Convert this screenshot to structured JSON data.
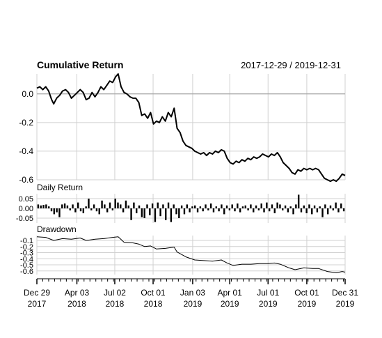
{
  "chart_data": {
    "type": "line",
    "title": "Cumulative Return",
    "date_range": "2017-12-29 / 2019-12-31",
    "x_ticks": [
      {
        "date": "2017-12-29",
        "line1": "Dec 29",
        "line2": "2017"
      },
      {
        "date": "2018-04-03",
        "line1": "Apr 03",
        "line2": "2018"
      },
      {
        "date": "2018-07-02",
        "line1": "Jul 02",
        "line2": "2018"
      },
      {
        "date": "2018-10-01",
        "line1": "Oct 01",
        "line2": "2018"
      },
      {
        "date": "2019-01-03",
        "line1": "Jan 03",
        "line2": "2019"
      },
      {
        "date": "2019-04-01",
        "line1": "Apr 01",
        "line2": "2019"
      },
      {
        "date": "2019-07-01",
        "line1": "Jul 01",
        "line2": "2019"
      },
      {
        "date": "2019-10-01",
        "line1": "Oct 01",
        "line2": "2019"
      },
      {
        "date": "2019-12-31",
        "line1": "Dec 31",
        "line2": "2019"
      }
    ],
    "panels": [
      {
        "name": "cumulative-return",
        "label": "",
        "ylim": [
          -0.6,
          0.14
        ],
        "yticks": [
          0.0,
          -0.2,
          -0.4,
          -0.6
        ],
        "ytick_labels": [
          "0.0",
          "-0.2",
          "-0.4",
          "-0.6"
        ],
        "reference_line": 0.0,
        "series": [
          {
            "points": [
              [
                "2017-12-29",
                0.04
              ],
              [
                "2018-01-05",
                0.05
              ],
              [
                "2018-01-12",
                0.03
              ],
              [
                "2018-01-19",
                0.05
              ],
              [
                "2018-01-26",
                0.02
              ],
              [
                "2018-02-02",
                -0.04
              ],
              [
                "2018-02-07",
                -0.07
              ],
              [
                "2018-02-14",
                -0.03
              ],
              [
                "2018-02-21",
                -0.01
              ],
              [
                "2018-02-28",
                0.02
              ],
              [
                "2018-03-07",
                0.03
              ],
              [
                "2018-03-14",
                0.01
              ],
              [
                "2018-03-21",
                -0.03
              ],
              [
                "2018-03-28",
                -0.01
              ],
              [
                "2018-04-04",
                0.01
              ],
              [
                "2018-04-11",
                0.03
              ],
              [
                "2018-04-18",
                0.01
              ],
              [
                "2018-04-25",
                -0.04
              ],
              [
                "2018-05-02",
                -0.03
              ],
              [
                "2018-05-09",
                0.01
              ],
              [
                "2018-05-16",
                -0.02
              ],
              [
                "2018-05-23",
                0.01
              ],
              [
                "2018-05-30",
                0.05
              ],
              [
                "2018-06-06",
                0.03
              ],
              [
                "2018-06-13",
                0.06
              ],
              [
                "2018-06-20",
                0.09
              ],
              [
                "2018-06-27",
                0.08
              ],
              [
                "2018-07-04",
                0.12
              ],
              [
                "2018-07-10",
                0.14
              ],
              [
                "2018-07-17",
                0.05
              ],
              [
                "2018-07-24",
                0.01
              ],
              [
                "2018-07-31",
                0.0
              ],
              [
                "2018-08-07",
                -0.02
              ],
              [
                "2018-08-14",
                -0.03
              ],
              [
                "2018-08-21",
                -0.03
              ],
              [
                "2018-08-28",
                -0.06
              ],
              [
                "2018-09-04",
                -0.15
              ],
              [
                "2018-09-11",
                -0.14
              ],
              [
                "2018-09-18",
                -0.17
              ],
              [
                "2018-09-25",
                -0.13
              ],
              [
                "2018-10-02",
                -0.21
              ],
              [
                "2018-10-09",
                -0.19
              ],
              [
                "2018-10-16",
                -0.2
              ],
              [
                "2018-10-23",
                -0.16
              ],
              [
                "2018-10-30",
                -0.19
              ],
              [
                "2018-11-06",
                -0.13
              ],
              [
                "2018-11-13",
                -0.16
              ],
              [
                "2018-11-20",
                -0.1
              ],
              [
                "2018-11-27",
                -0.24
              ],
              [
                "2018-12-04",
                -0.27
              ],
              [
                "2018-12-11",
                -0.33
              ],
              [
                "2018-12-18",
                -0.36
              ],
              [
                "2018-12-25",
                -0.37
              ],
              [
                "2019-01-01",
                -0.38
              ],
              [
                "2019-01-08",
                -0.4
              ],
              [
                "2019-01-15",
                -0.41
              ],
              [
                "2019-01-22",
                -0.42
              ],
              [
                "2019-01-29",
                -0.41
              ],
              [
                "2019-02-05",
                -0.43
              ],
              [
                "2019-02-12",
                -0.41
              ],
              [
                "2019-02-19",
                -0.42
              ],
              [
                "2019-02-26",
                -0.4
              ],
              [
                "2019-03-05",
                -0.41
              ],
              [
                "2019-03-12",
                -0.39
              ],
              [
                "2019-03-19",
                -0.4
              ],
              [
                "2019-03-26",
                -0.45
              ],
              [
                "2019-04-02",
                -0.48
              ],
              [
                "2019-04-09",
                -0.49
              ],
              [
                "2019-04-16",
                -0.47
              ],
              [
                "2019-04-23",
                -0.48
              ],
              [
                "2019-04-30",
                -0.46
              ],
              [
                "2019-05-07",
                -0.47
              ],
              [
                "2019-05-14",
                -0.45
              ],
              [
                "2019-05-21",
                -0.46
              ],
              [
                "2019-05-28",
                -0.44
              ],
              [
                "2019-06-04",
                -0.45
              ],
              [
                "2019-06-11",
                -0.44
              ],
              [
                "2019-06-18",
                -0.42
              ],
              [
                "2019-06-25",
                -0.43
              ],
              [
                "2019-07-02",
                -0.44
              ],
              [
                "2019-07-09",
                -0.42
              ],
              [
                "2019-07-16",
                -0.43
              ],
              [
                "2019-07-23",
                -0.41
              ],
              [
                "2019-07-30",
                -0.44
              ],
              [
                "2019-08-06",
                -0.48
              ],
              [
                "2019-08-13",
                -0.5
              ],
              [
                "2019-08-20",
                -0.52
              ],
              [
                "2019-08-27",
                -0.55
              ],
              [
                "2019-09-03",
                -0.56
              ],
              [
                "2019-09-10",
                -0.53
              ],
              [
                "2019-09-17",
                -0.54
              ],
              [
                "2019-09-24",
                -0.52
              ],
              [
                "2019-10-01",
                -0.53
              ],
              [
                "2019-10-08",
                -0.52
              ],
              [
                "2019-10-15",
                -0.53
              ],
              [
                "2019-10-22",
                -0.52
              ],
              [
                "2019-10-29",
                -0.53
              ],
              [
                "2019-11-05",
                -0.56
              ],
              [
                "2019-11-12",
                -0.59
              ],
              [
                "2019-11-19",
                -0.6
              ],
              [
                "2019-11-26",
                -0.61
              ],
              [
                "2019-12-03",
                -0.6
              ],
              [
                "2019-12-10",
                -0.61
              ],
              [
                "2019-12-17",
                -0.59
              ],
              [
                "2019-12-24",
                -0.56
              ],
              [
                "2019-12-31",
                -0.57
              ]
            ]
          }
        ]
      },
      {
        "name": "daily-return",
        "label": "Daily Return",
        "type": "bar",
        "ylim": [
          -0.075,
          0.075
        ],
        "yticks": [
          0.05,
          0.0,
          -0.05
        ],
        "ytick_labels": [
          "0.05",
          "0.00",
          "-0.05"
        ],
        "values": [
          0.02,
          0.015,
          0.018,
          0.02,
          0.01,
          -0.015,
          -0.03,
          -0.02,
          -0.045,
          0.02,
          0.025,
          0.015,
          -0.01,
          0.02,
          -0.02,
          0.03,
          -0.015,
          -0.025,
          0.01,
          0.05,
          -0.01,
          0.02,
          -0.015,
          -0.03,
          0.04,
          0.02,
          -0.02,
          0.03,
          -0.01,
          0.05,
          0.03,
          0.02,
          -0.02,
          0.04,
          0.015,
          -0.06,
          0.03,
          -0.025,
          0.015,
          -0.045,
          -0.05,
          0.02,
          -0.035,
          0.025,
          -0.07,
          0.03,
          -0.04,
          0.02,
          -0.06,
          0.03,
          -0.07,
          0.02,
          -0.03,
          -0.05,
          0.015,
          -0.03,
          0.02,
          -0.02,
          0.01,
          0.015,
          -0.02,
          0.01,
          -0.015,
          0.02,
          -0.01,
          0.025,
          -0.02,
          0.01,
          -0.015,
          0.02,
          -0.03,
          0.015,
          -0.01,
          0.02,
          -0.015,
          0.025,
          -0.02,
          0.01,
          0.015,
          -0.01,
          0.02,
          -0.02,
          0.015,
          -0.01,
          0.025,
          -0.02,
          0.03,
          -0.015,
          0.02,
          -0.025,
          0.03,
          0.02,
          -0.01,
          0.015,
          -0.02,
          0.01,
          -0.03,
          0.02,
          0.07,
          -0.02,
          0.015,
          -0.025,
          0.02,
          -0.03,
          0.015,
          -0.02,
          0.01,
          -0.045,
          0.02,
          -0.03,
          0.015,
          -0.01,
          0.03,
          -0.02,
          0.025,
          -0.015
        ]
      },
      {
        "name": "drawdown",
        "label": "Drawdown",
        "ylim": [
          -0.66,
          -0.02
        ],
        "yticks": [
          -0.1,
          -0.2,
          -0.3,
          -0.4,
          -0.5,
          -0.6
        ],
        "ytick_labels": [
          "-0.1",
          "-0.2",
          "-0.3",
          "-0.4",
          "-0.5",
          "-0.6"
        ],
        "series": [
          {
            "points": [
              [
                "2017-12-29",
                -0.04
              ],
              [
                "2018-01-19",
                -0.05
              ],
              [
                "2018-02-07",
                -0.1
              ],
              [
                "2018-02-28",
                -0.07
              ],
              [
                "2018-03-21",
                -0.08
              ],
              [
                "2018-04-11",
                -0.06
              ],
              [
                "2018-04-25",
                -0.1
              ],
              [
                "2018-05-16",
                -0.08
              ],
              [
                "2018-06-06",
                -0.07
              ],
              [
                "2018-06-27",
                -0.05
              ],
              [
                "2018-07-10",
                -0.04
              ],
              [
                "2018-07-24",
                -0.13
              ],
              [
                "2018-08-14",
                -0.14
              ],
              [
                "2018-08-28",
                -0.16
              ],
              [
                "2018-09-11",
                -0.2
              ],
              [
                "2018-09-25",
                -0.19
              ],
              [
                "2018-10-09",
                -0.24
              ],
              [
                "2018-10-30",
                -0.23
              ],
              [
                "2018-11-20",
                -0.21
              ],
              [
                "2018-11-27",
                -0.29
              ],
              [
                "2018-12-18",
                -0.37
              ],
              [
                "2019-01-08",
                -0.42
              ],
              [
                "2019-01-29",
                -0.43
              ],
              [
                "2019-02-19",
                -0.44
              ],
              [
                "2019-03-12",
                -0.42
              ],
              [
                "2019-03-26",
                -0.47
              ],
              [
                "2019-04-09",
                -0.51
              ],
              [
                "2019-04-30",
                -0.49
              ],
              [
                "2019-05-21",
                -0.49
              ],
              [
                "2019-06-11",
                -0.48
              ],
              [
                "2019-07-02",
                -0.48
              ],
              [
                "2019-07-16",
                -0.47
              ],
              [
                "2019-07-30",
                -0.49
              ],
              [
                "2019-08-20",
                -0.55
              ],
              [
                "2019-09-03",
                -0.58
              ],
              [
                "2019-09-24",
                -0.55
              ],
              [
                "2019-10-15",
                -0.56
              ],
              [
                "2019-10-29",
                -0.56
              ],
              [
                "2019-11-19",
                -0.61
              ],
              [
                "2019-12-10",
                -0.63
              ],
              [
                "2019-12-24",
                -0.61
              ],
              [
                "2019-12-31",
                -0.62
              ]
            ]
          }
        ]
      }
    ]
  },
  "colors": {
    "line": "#000000",
    "grid": "#d0d0d0",
    "reference": "#999999",
    "background": "#ffffff"
  }
}
